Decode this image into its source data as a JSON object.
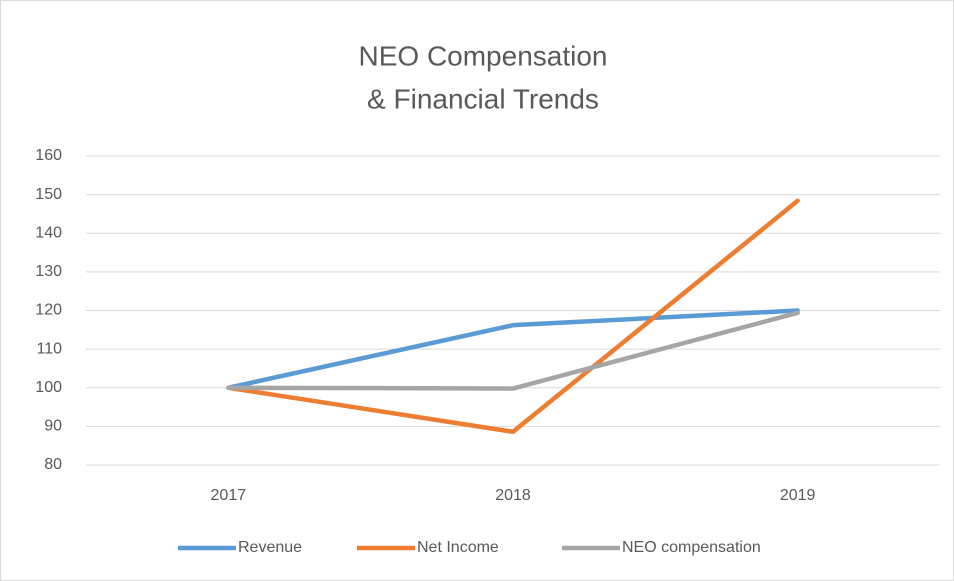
{
  "chart_data": {
    "type": "line",
    "title": [
      "NEO Compensation",
      "& Financial Trends"
    ],
    "categories": [
      "2017",
      "2018",
      "2019"
    ],
    "series": [
      {
        "name": "Revenue",
        "color": "#5b9bd5",
        "values": [
          100,
          116.2,
          120
        ]
      },
      {
        "name": "Net Income",
        "color": "#ed7d31",
        "values": [
          100,
          88.6,
          148.4
        ]
      },
      {
        "name": "NEO compensation",
        "color": "#a5a5a5",
        "values": [
          100,
          99.8,
          119.4
        ]
      }
    ],
    "ylim": [
      80,
      160
    ],
    "yticks": [
      80,
      90,
      100,
      110,
      120,
      130,
      140,
      150,
      160
    ],
    "grid": true,
    "legend": "bottom"
  }
}
